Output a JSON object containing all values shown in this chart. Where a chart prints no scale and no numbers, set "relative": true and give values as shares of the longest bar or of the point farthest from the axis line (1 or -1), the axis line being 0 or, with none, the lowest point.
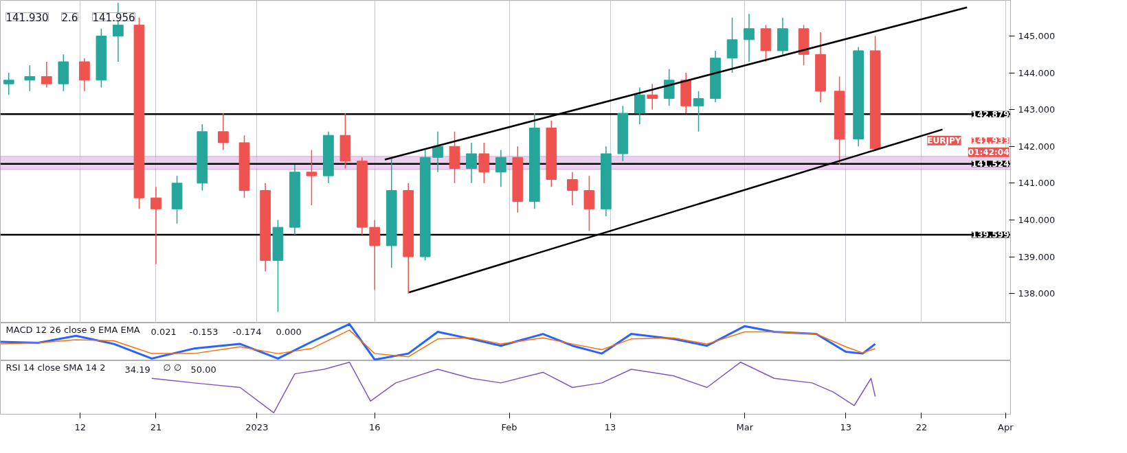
{
  "chart_data": [
    {
      "type": "candlestick",
      "tick_labels": "y",
      "grid": "x",
      "x": [
        "2022-12-03T12:00",
        "2022-12-06",
        "2022-12-08",
        "2022-12-10",
        "2022-12-12T12:00",
        "2022-12-14T12:00",
        "2022-12-16T12:00",
        "2022-12-19",
        "2022-12-21",
        "2022-12-23T12:00",
        "2022-12-26T12:00",
        "2022-12-29",
        "2022-12-31T12:00",
        "2023-01-03",
        "2023-01-04T12:00",
        "2023-01-06T12:00",
        "2023-01-08T12:00",
        "2023-01-10T12:00",
        "2023-01-12T12:00",
        "2023-01-14T12:00",
        "2023-01-16",
        "2023-01-18",
        "2023-01-20",
        "2023-01-22",
        "2023-01-23T12:00",
        "2023-01-25T12:00",
        "2023-01-27T12:00",
        "2023-01-29",
        "2023-01-31",
        "2023-02-02",
        "2023-02-04",
        "2023-02-06",
        "2023-02-08T12:00",
        "2023-02-10T12:00",
        "2023-02-12T12:00",
        "2023-02-14T12:00",
        "2023-02-16T12:00",
        "2023-02-18",
        "2023-02-20",
        "2023-02-22",
        "2023-02-23T12:00",
        "2023-02-25T12:00",
        "2023-02-27T12:00",
        "2023-03-01T12:00",
        "2023-03-03T12:00",
        "2023-03-05T12:00",
        "2023-03-08",
        "2023-03-10",
        "2023-03-12T06:00",
        "2023-03-14T12:00",
        "2023-03-16T12:00"
      ],
      "ohlc": [
        [
          143.7,
          144.0,
          143.4,
          143.8
        ],
        [
          143.8,
          144.2,
          143.5,
          143.9
        ],
        [
          143.9,
          144.3,
          143.6,
          143.7
        ],
        [
          143.7,
          144.5,
          143.5,
          144.3
        ],
        [
          144.3,
          144.4,
          143.5,
          143.8
        ],
        [
          143.8,
          145.2,
          143.6,
          145.0
        ],
        [
          145.0,
          145.9,
          144.3,
          145.3
        ],
        [
          145.3,
          145.5,
          140.3,
          140.6
        ],
        [
          140.6,
          140.9,
          138.8,
          140.3
        ],
        [
          140.3,
          141.2,
          139.9,
          141.0
        ],
        [
          141.0,
          142.6,
          140.8,
          142.4
        ],
        [
          142.4,
          142.9,
          141.9,
          142.1
        ],
        [
          142.1,
          142.3,
          140.6,
          140.8
        ],
        [
          140.8,
          141.0,
          138.6,
          138.9
        ],
        [
          138.9,
          140.0,
          137.5,
          139.8
        ],
        [
          139.8,
          141.5,
          139.6,
          141.3
        ],
        [
          141.3,
          141.9,
          140.4,
          141.2
        ],
        [
          141.2,
          142.4,
          141.0,
          142.3
        ],
        [
          142.3,
          142.9,
          141.4,
          141.6
        ],
        [
          141.6,
          141.7,
          139.6,
          139.8
        ],
        [
          139.8,
          140.0,
          138.1,
          139.3
        ],
        [
          139.3,
          141.7,
          138.7,
          140.8
        ],
        [
          140.8,
          141.0,
          138.0,
          139.0
        ],
        [
          139.0,
          141.9,
          138.9,
          141.7
        ],
        [
          141.7,
          142.4,
          141.3,
          142.0
        ],
        [
          142.0,
          142.4,
          141.0,
          141.4
        ],
        [
          141.4,
          142.1,
          141.0,
          141.8
        ],
        [
          141.8,
          142.1,
          141.0,
          141.3
        ],
        [
          141.3,
          141.9,
          140.9,
          141.7
        ],
        [
          141.7,
          142.0,
          140.2,
          140.5
        ],
        [
          140.5,
          142.9,
          140.3,
          142.5
        ],
        [
          142.5,
          142.7,
          140.9,
          141.1
        ],
        [
          141.1,
          141.3,
          140.4,
          140.8
        ],
        [
          140.8,
          141.2,
          139.7,
          140.3
        ],
        [
          140.3,
          142.0,
          140.1,
          141.8
        ],
        [
          141.8,
          143.1,
          141.6,
          142.9
        ],
        [
          142.9,
          143.6,
          142.6,
          143.4
        ],
        [
          143.4,
          143.7,
          143.0,
          143.3
        ],
        [
          143.3,
          144.1,
          143.1,
          143.8
        ],
        [
          143.8,
          144.0,
          142.9,
          143.1
        ],
        [
          143.1,
          143.5,
          142.4,
          143.3
        ],
        [
          143.3,
          144.6,
          143.2,
          144.4
        ],
        [
          144.4,
          145.5,
          144.0,
          144.9
        ],
        [
          144.9,
          145.6,
          144.3,
          145.2
        ],
        [
          145.2,
          145.3,
          144.3,
          144.6
        ],
        [
          144.6,
          145.5,
          144.5,
          145.2
        ],
        [
          145.2,
          145.3,
          144.2,
          144.5
        ],
        [
          144.5,
          145.1,
          143.2,
          143.5
        ],
        [
          143.5,
          143.9,
          141.5,
          142.2
        ],
        [
          142.2,
          144.7,
          142.0,
          144.6
        ],
        [
          144.6,
          145.0,
          141.9,
          141.933
        ]
      ],
      "colors": [
        "#26a69a",
        "#26a69a",
        "#ef5350",
        "#26a69a",
        "#ef5350",
        "#26a69a",
        "#26a69a",
        "#ef5350",
        "#ef5350",
        "#26a69a",
        "#26a69a",
        "#ef5350",
        "#ef5350",
        "#ef5350",
        "#26a69a",
        "#26a69a",
        "#ef5350",
        "#26a69a",
        "#ef5350",
        "#ef5350",
        "#ef5350",
        "#26a69a",
        "#ef5350",
        "#26a69a",
        "#26a69a",
        "#ef5350",
        "#26a69a",
        "#ef5350",
        "#26a69a",
        "#ef5350",
        "#26a69a",
        "#ef5350",
        "#ef5350",
        "#ef5350",
        "#26a69a",
        "#26a69a",
        "#26a69a",
        "#ef5350",
        "#26a69a",
        "#ef5350",
        "#26a69a",
        "#26a69a",
        "#26a69a",
        "#26a69a",
        "#ef5350",
        "#26a69a",
        "#ef5350",
        "#ef5350",
        "#ef5350",
        "#26a69a",
        "#ef5350"
      ],
      "series": [
        {
          "type": "line",
          "color": "#000000",
          "x": [
            "2023-01-17T05:00",
            "2023-03-27T10:00"
          ],
          "values": [
            141.64,
            145.78
          ]
        },
        {
          "type": "line",
          "color": "#000000",
          "x": [
            "2023-01-20T02:00",
            "2023-03-24T12:00"
          ],
          "values": [
            138.03,
            142.46
          ]
        }
      ],
      "xlim": [
        "2022-12-02T12:00",
        "2023-04-01T14:00"
      ],
      "ylim": [
        137.2,
        145.97
      ],
      "xticks": [
        {
          "value": "2022-12-12",
          "label": null
        },
        {
          "value": "2022-12-21",
          "label": null
        },
        {
          "value": "2023-01-02",
          "label": null
        },
        {
          "value": "2023-01-16",
          "label": null
        },
        {
          "value": "2023-02-01",
          "label": null
        },
        {
          "value": "2023-02-13",
          "label": null
        },
        {
          "value": "2023-03-01",
          "label": null
        },
        {
          "value": "2023-03-13",
          "label": null
        },
        {
          "value": "2023-03-22",
          "label": null
        },
        {
          "value": "2023-04-01",
          "label": null
        }
      ],
      "yticks": [
        {
          "value": 138,
          "label": "138.000"
        },
        {
          "value": 139,
          "label": "139.000"
        },
        {
          "value": 140,
          "label": "140.000"
        },
        {
          "value": 141,
          "label": "141.000"
        },
        {
          "value": 142,
          "label": "142.000"
        },
        {
          "value": 143,
          "label": "143.000"
        },
        {
          "value": 144,
          "label": "144.000"
        },
        {
          "value": 145,
          "label": "145.000"
        }
      ],
      "ref_lines": [
        {
          "axis": "y",
          "value": 142.879,
          "label": "142.879",
          "color": "#000000"
        },
        {
          "axis": "y",
          "value": 141.524,
          "label": "141.524",
          "color": "#000000"
        },
        {
          "axis": "y",
          "value": 139.599,
          "label": "139.599",
          "color": "#000000"
        }
      ],
      "bands": [
        {
          "axis": "y",
          "from": 141.37,
          "to": 141.73,
          "color": "#e1bee7"
        }
      ],
      "annotations": [
        "141.930",
        "2.6",
        "141.956",
        "EURJPY",
        "141.933",
        "01:42:04"
      ]
    },
    {
      "type": "line",
      "relative": true,
      "tick_labels": false,
      "title": "MACD 12 26 close 9 EMA EMA",
      "xlim": [
        "2022-12-02T12:00",
        "2023-04-01T14:00"
      ],
      "series": [
        {
          "color": "#2962ff",
          "x": [
            "2022-12-02T12:00",
            "2022-12-07",
            "2022-12-11T12:00",
            "2022-12-16",
            "2022-12-20T12:00",
            "2022-12-25T12:00",
            "2022-12-31",
            "2023-01-04T12:00",
            "2023-01-08T12:00",
            "2023-01-13",
            "2023-01-16",
            "2023-01-20",
            "2023-01-23T12:00",
            "2023-01-27T12:00",
            "2023-01-31",
            "2023-02-05",
            "2023-02-08T12:00",
            "2023-02-12",
            "2023-02-15T12:00",
            "2023-02-20T12:00",
            "2023-02-24T12:00",
            "2023-03-01",
            "2023-03-04T12:00",
            "2023-03-09T12:00",
            "2023-03-13",
            "2023-03-15",
            "2023-03-16T12:00"
          ],
          "values": [
            0.5,
            0.47,
            0.67,
            0.44,
            0.03,
            0.31,
            0.44,
            0.03,
            0.5,
            1,
            0,
            0.17,
            0.78,
            0.58,
            0.39,
            0.72,
            0.39,
            0.17,
            0.72,
            0.58,
            0.39,
            0.94,
            0.78,
            0.72,
            0.22,
            0.17,
            0.44
          ]
        },
        {
          "color": "#ff6d00",
          "x": [
            "2022-12-02T12:00",
            "2022-12-07",
            "2022-12-11T12:00",
            "2022-12-16",
            "2022-12-20T12:00",
            "2022-12-25T12:00",
            "2022-12-31",
            "2023-01-04T12:00",
            "2023-01-08T12:00",
            "2023-01-13",
            "2023-01-16",
            "2023-01-20",
            "2023-01-23T12:00",
            "2023-01-27T12:00",
            "2023-01-31",
            "2023-02-05",
            "2023-02-08T12:00",
            "2023-02-12",
            "2023-02-15T12:00",
            "2023-02-20T12:00",
            "2023-02-24T12:00",
            "2023-03-01",
            "2023-03-04T12:00",
            "2023-03-09T12:00",
            "2023-03-13",
            "2023-03-15",
            "2023-03-16T12:00"
          ],
          "values": [
            0.44,
            0.47,
            0.56,
            0.53,
            0.17,
            0.17,
            0.36,
            0.17,
            0.31,
            0.83,
            0.17,
            0.08,
            0.58,
            0.61,
            0.44,
            0.61,
            0.44,
            0.28,
            0.58,
            0.61,
            0.44,
            0.78,
            0.78,
            0.72,
            0.36,
            0.19,
            0.31
          ]
        }
      ],
      "annotations": [
        "0.021",
        "-0.153",
        "-0.174",
        "0.000"
      ]
    },
    {
      "type": "line",
      "relative": true,
      "tick_labels": "x",
      "title": "RSI 14 close SMA 14 2",
      "xlim": [
        "2022-12-02T12:00",
        "2023-04-01T14:00"
      ],
      "xticks": [
        {
          "value": "2022-12-12",
          "label": "12"
        },
        {
          "value": "2022-12-21",
          "label": "21"
        },
        {
          "value": "2023-01-02",
          "label": "2023"
        },
        {
          "value": "2023-01-16",
          "label": "16"
        },
        {
          "value": "2023-02-01",
          "label": "Feb"
        },
        {
          "value": "2023-02-13",
          "label": "13"
        },
        {
          "value": "2023-03-01",
          "label": "Mar"
        },
        {
          "value": "2023-03-13",
          "label": "13"
        },
        {
          "value": "2023-03-22",
          "label": "22"
        },
        {
          "value": "2023-04-01",
          "label": "Apr"
        }
      ],
      "series": [
        {
          "color": "#7e57c2",
          "x": [
            "2022-12-20T12:00",
            "2022-12-25T12:00",
            "2022-12-31",
            "2023-01-04",
            "2023-01-06T12:00",
            "2023-01-10",
            "2023-01-13",
            "2023-01-15T12:00",
            "2023-01-18T12:00",
            "2023-01-23T12:00",
            "2023-01-27T12:00",
            "2023-01-31",
            "2023-02-05",
            "2023-02-08T12:00",
            "2023-02-12",
            "2023-02-15T12:00",
            "2023-02-20T12:00",
            "2023-02-24T12:00",
            "2023-02-28T12:00",
            "2023-03-04T12:00",
            "2023-03-09",
            "2023-03-11T12:00",
            "2023-03-14",
            "2023-03-16",
            "2023-03-16T12:00"
          ],
          "values": [
            0.68,
            0.59,
            0.5,
            0,
            0.77,
            0.86,
            1,
            0.23,
            0.59,
            0.86,
            0.68,
            0.59,
            0.8,
            0.5,
            0.59,
            0.86,
            0.73,
            0.5,
            1,
            0.68,
            0.59,
            0.41,
            0.14,
            0.68,
            0.32
          ]
        }
      ],
      "annotations": [
        "34.19",
        "∅ ∅",
        "50.00"
      ]
    }
  ]
}
